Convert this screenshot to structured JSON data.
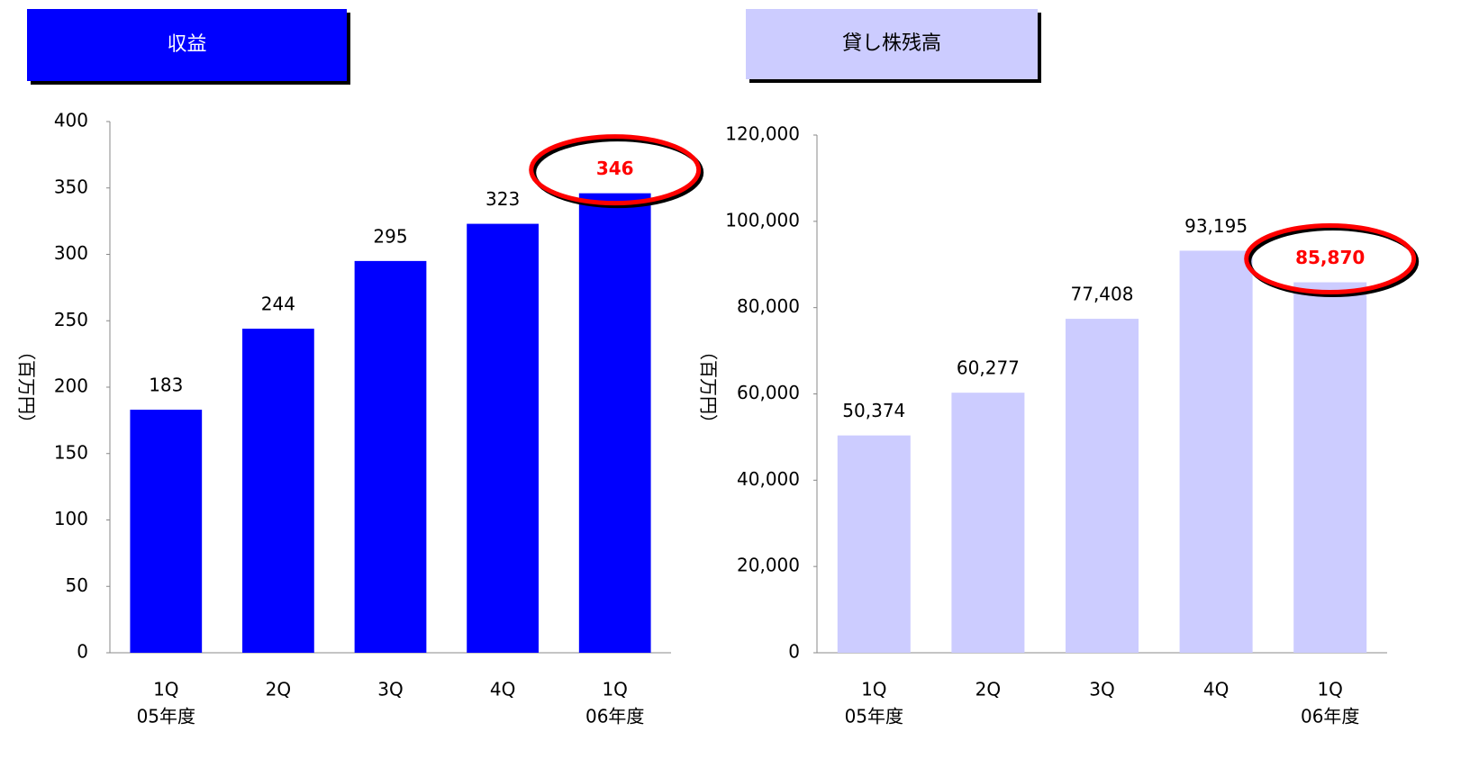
{
  "chart_data": [
    {
      "type": "bar",
      "title": "収益",
      "ylabel": "（百万円）",
      "categories": [
        "1Q",
        "2Q",
        "3Q",
        "4Q",
        "1Q"
      ],
      "category_sublabels": [
        "05年度",
        null,
        null,
        null,
        "06年度"
      ],
      "values": [
        183,
        244,
        295,
        323,
        346
      ],
      "value_label_colors": [
        "#000000",
        "#000000",
        "#000000",
        "#000000",
        "#ff0000"
      ],
      "color": "#0000ff",
      "title_color": "#0000ff",
      "title_text_color": "#ffffff",
      "ylim": [
        0,
        400
      ],
      "yticks": [
        0,
        50,
        100,
        150,
        200,
        250,
        300,
        350,
        400
      ]
    },
    {
      "type": "bar",
      "title": "貸し株残高",
      "ylabel": "（百万円）",
      "categories": [
        "1Q",
        "2Q",
        "3Q",
        "4Q",
        "1Q"
      ],
      "category_sublabels": [
        "05年度",
        null,
        null,
        null,
        "06年度"
      ],
      "values": [
        50374,
        60277,
        77408,
        93195,
        85870
      ],
      "value_labels": [
        "50,374",
        "60,277",
        "77,408",
        "93,195",
        "85,870"
      ],
      "value_label_colors": [
        "#000000",
        "#000000",
        "#000000",
        "#000000",
        "#ff0000"
      ],
      "color": "#ccccff",
      "title_color": "#ccccff",
      "title_text_color": "#000000",
      "ylim": [
        0,
        120000
      ],
      "yticks": [
        0,
        {
          "value": 20000,
          "label": "20,000"
        },
        {
          "value": 40000,
          "label": "40,000"
        },
        {
          "value": 60000,
          "label": "60,000"
        },
        {
          "value": 80000,
          "label": "80,000"
        },
        {
          "value": 100000,
          "label": "100,000"
        },
        {
          "value": 120000,
          "label": "120,000"
        }
      ]
    }
  ]
}
